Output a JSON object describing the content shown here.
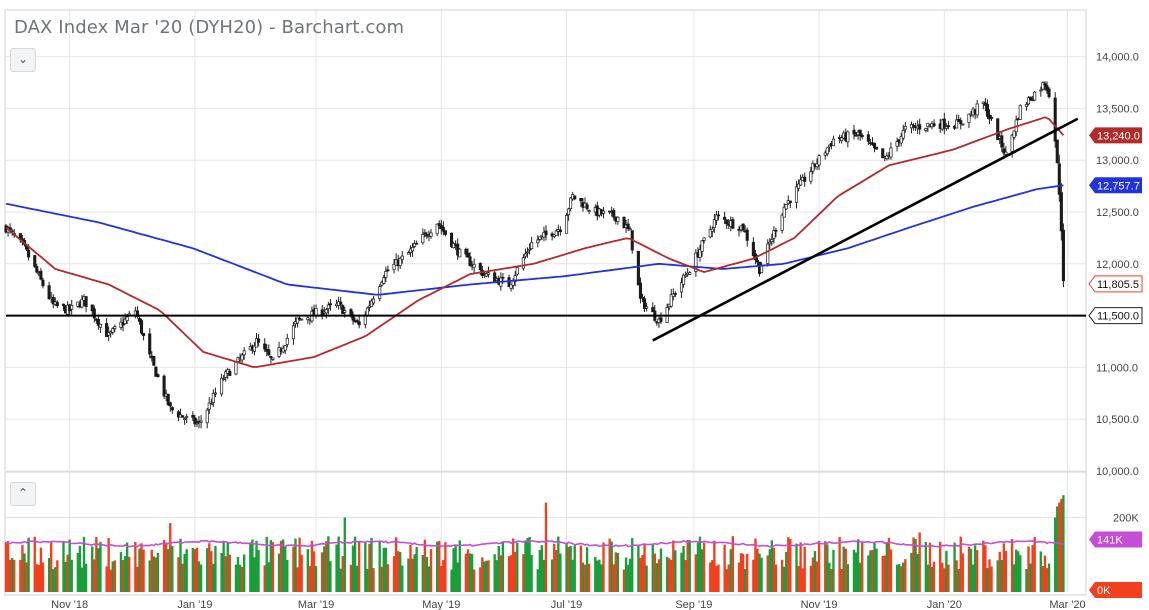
{
  "title": "DAX Index Mar '20 (DYH20) - Barchart.com",
  "controls": {
    "collapse_icon": "chevron-down-icon",
    "expand_icon": "chevron-up-icon"
  },
  "colors": {
    "up": "#1a9e3a",
    "down": "#f0401e",
    "ma_fast": "#b22a2a",
    "ma_slow": "#2233dd",
    "vol_avg": "#c44fd6",
    "grid": "#e4e4e4",
    "trend": "#000000"
  },
  "chart_data": {
    "type": "candlestick",
    "price_axis": {
      "min": 10000,
      "max": 14000,
      "ticks": [
        10000,
        10500,
        11000,
        11500,
        12000,
        12500,
        13000,
        13500,
        14000
      ],
      "tick_labels": [
        "10,000.0",
        "10,500.0",
        "11,000.0",
        "11,500.0",
        "12,000.0",
        "12,500.0",
        "13,000.0",
        "13,500.0",
        "14,000.0"
      ]
    },
    "x_axis": {
      "start": "2018-10-01",
      "end": "2020-03-10",
      "ticks": [
        {
          "date": "2018-11-01",
          "label": "Nov '18"
        },
        {
          "date": "2019-01-01",
          "label": "Jan '19"
        },
        {
          "date": "2019-03-01",
          "label": "Mar '19"
        },
        {
          "date": "2019-05-01",
          "label": "May '19"
        },
        {
          "date": "2019-07-01",
          "label": "Jul '19"
        },
        {
          "date": "2019-09-01",
          "label": "Sep '19"
        },
        {
          "date": "2019-11-01",
          "label": "Nov '19"
        },
        {
          "date": "2020-01-01",
          "label": "Jan '20"
        },
        {
          "date": "2020-03-01",
          "label": "Mar '20"
        }
      ]
    },
    "price_path": [
      [
        "2018-10-01",
        12350
      ],
      [
        "2018-10-10",
        12150
      ],
      [
        "2018-10-24",
        11600
      ],
      [
        "2018-11-01",
        11550
      ],
      [
        "2018-11-08",
        11650
      ],
      [
        "2018-11-20",
        11300
      ],
      [
        "2018-12-03",
        11550
      ],
      [
        "2018-12-10",
        11100
      ],
      [
        "2018-12-20",
        10600
      ],
      [
        "2018-12-28",
        10500
      ],
      [
        "2019-01-03",
        10450
      ],
      [
        "2019-01-15",
        10900
      ],
      [
        "2019-01-31",
        11250
      ],
      [
        "2019-02-08",
        11050
      ],
      [
        "2019-02-20",
        11450
      ],
      [
        "2019-03-04",
        11550
      ],
      [
        "2019-03-12",
        11600
      ],
      [
        "2019-03-22",
        11400
      ],
      [
        "2019-04-03",
        11900
      ],
      [
        "2019-04-15",
        12100
      ],
      [
        "2019-04-29",
        12400
      ],
      [
        "2019-05-10",
        12100
      ],
      [
        "2019-05-22",
        11900
      ],
      [
        "2019-06-03",
        11800
      ],
      [
        "2019-06-14",
        12200
      ],
      [
        "2019-06-28",
        12350
      ],
      [
        "2019-07-04",
        12650
      ],
      [
        "2019-07-15",
        12500
      ],
      [
        "2019-07-26",
        12450
      ],
      [
        "2019-08-01",
        12300
      ],
      [
        "2019-08-06",
        11650
      ],
      [
        "2019-08-15",
        11450
      ],
      [
        "2019-08-22",
        11700
      ],
      [
        "2019-08-30",
        11950
      ],
      [
        "2019-09-12",
        12450
      ],
      [
        "2019-09-25",
        12350
      ],
      [
        "2019-10-03",
        11950
      ],
      [
        "2019-10-15",
        12550
      ],
      [
        "2019-10-28",
        12900
      ],
      [
        "2019-11-08",
        13200
      ],
      [
        "2019-11-20",
        13250
      ],
      [
        "2019-12-03",
        13000
      ],
      [
        "2019-12-13",
        13300
      ],
      [
        "2019-12-27",
        13350
      ],
      [
        "2020-01-08",
        13350
      ],
      [
        "2020-01-20",
        13550
      ],
      [
        "2020-01-31",
        13050
      ],
      [
        "2020-02-07",
        13500
      ],
      [
        "2020-02-19",
        13750
      ],
      [
        "2020-02-21",
        13650
      ],
      [
        "2020-02-24",
        13200
      ],
      [
        "2020-02-25",
        12950
      ],
      [
        "2020-02-26",
        12700
      ],
      [
        "2020-02-27",
        12350
      ],
      [
        "2020-02-28",
        11805
      ]
    ],
    "ma_50": [
      [
        "2018-10-01",
        12350
      ],
      [
        "2018-10-25",
        11950
      ],
      [
        "2018-11-20",
        11800
      ],
      [
        "2018-12-15",
        11550
      ],
      [
        "2019-01-05",
        11150
      ],
      [
        "2019-01-30",
        11000
      ],
      [
        "2019-02-28",
        11100
      ],
      [
        "2019-03-25",
        11300
      ],
      [
        "2019-04-20",
        11650
      ],
      [
        "2019-05-15",
        11900
      ],
      [
        "2019-06-15",
        12000
      ],
      [
        "2019-07-10",
        12150
      ],
      [
        "2019-07-31",
        12250
      ],
      [
        "2019-08-20",
        12050
      ],
      [
        "2019-09-06",
        11920
      ],
      [
        "2019-09-30",
        12050
      ],
      [
        "2019-10-20",
        12250
      ],
      [
        "2019-11-10",
        12650
      ],
      [
        "2019-12-05",
        12950
      ],
      [
        "2020-01-05",
        13100
      ],
      [
        "2020-02-01",
        13300
      ],
      [
        "2020-02-20",
        13420
      ],
      [
        "2020-02-28",
        13240
      ]
    ],
    "ma_200": [
      [
        "2018-10-01",
        12580
      ],
      [
        "2018-11-15",
        12400
      ],
      [
        "2018-12-31",
        12150
      ],
      [
        "2019-02-15",
        11800
      ],
      [
        "2019-03-31",
        11700
      ],
      [
        "2019-05-15",
        11800
      ],
      [
        "2019-06-30",
        11880
      ],
      [
        "2019-08-15",
        12000
      ],
      [
        "2019-09-15",
        11950
      ],
      [
        "2019-10-15",
        12000
      ],
      [
        "2019-11-15",
        12150
      ],
      [
        "2019-12-15",
        12350
      ],
      [
        "2020-01-15",
        12550
      ],
      [
        "2020-02-15",
        12720
      ],
      [
        "2020-02-28",
        12757.7
      ]
    ],
    "trendline": [
      [
        "2019-08-12",
        11260
      ],
      [
        "2020-03-06",
        13400
      ]
    ],
    "support_line": 11500,
    "last_values": {
      "ma_50": "13,240.0",
      "ma_200": "12,757.7",
      "last_price": "11,805.5",
      "support": "11,500.0"
    },
    "volume_axis": {
      "labels": [
        "200K",
        "141K",
        "0K"
      ],
      "values": [
        200000,
        141000,
        0
      ]
    },
    "volume_spikes": [
      [
        "2018-12-20",
        185000
      ],
      [
        "2019-03-15",
        200000
      ],
      [
        "2019-06-21",
        240000
      ],
      [
        "2019-09-20",
        150000
      ],
      [
        "2019-12-20",
        160000
      ],
      [
        "2020-02-24",
        200000
      ],
      [
        "2020-02-25",
        230000
      ],
      [
        "2020-02-26",
        240000
      ],
      [
        "2020-02-27",
        250000
      ],
      [
        "2020-02-28",
        260000
      ]
    ],
    "volume_avg": 141000
  }
}
